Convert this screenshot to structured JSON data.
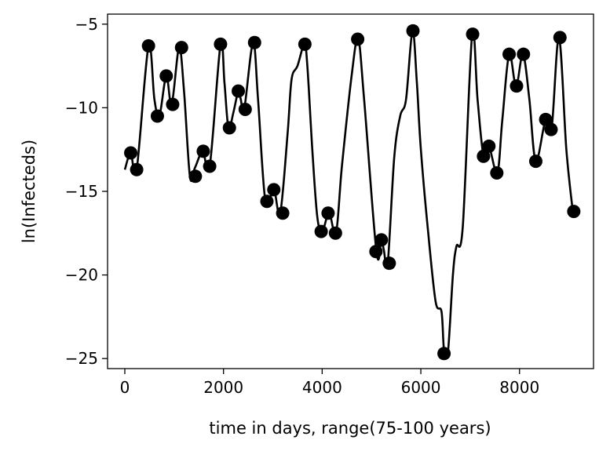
{
  "chart_data": {
    "type": "line",
    "title": "",
    "xlabel": "time in days, range(75-100 years)",
    "ylabel": "ln(Infecteds)",
    "xlim": [
      -350,
      9500
    ],
    "ylim": [
      -25.6,
      -4.4
    ],
    "xticks": [
      0,
      2000,
      4000,
      6000,
      8000
    ],
    "yticks": [
      -25,
      -20,
      -15,
      -10,
      -5
    ],
    "xtick_labels": [
      "0",
      "2000",
      "4000",
      "6000",
      "8000"
    ],
    "ytick_labels": [
      "−25",
      "−20",
      "−15",
      "−10",
      "−5"
    ],
    "grid": false,
    "legend": "none",
    "line_color": "#000000",
    "marker_color": "#000000",
    "curve": {
      "x": [
        0,
        120,
        240,
        480,
        600,
        700,
        840,
        950,
        1100,
        1200,
        1320,
        1420,
        1580,
        1720,
        1940,
        2020,
        2100,
        2200,
        2300,
        2350,
        2420,
        2600,
        2700,
        2850,
        3020,
        3150,
        3300,
        3380,
        3500,
        3640,
        3700,
        3800,
        3900,
        4000,
        4140,
        4280,
        4400,
        4600,
        4730,
        4850,
        5100,
        5200,
        5250,
        5330,
        5460,
        5580,
        5700,
        5830,
        5920,
        6000,
        6150,
        6300,
        6420,
        6470,
        6550,
        6650,
        6720,
        6850,
        7040,
        7150,
        7270,
        7380,
        7550,
        7650,
        7790,
        7930,
        8070,
        8200,
        8330,
        8530,
        8650,
        8800,
        8950,
        9080
      ],
      "y": [
        -13.7,
        -12.7,
        -13.7,
        -6.3,
        -9.5,
        -10.5,
        -8.1,
        -9.8,
        -6.4,
        -9.0,
        -14.1,
        -13.6,
        -12.6,
        -13.5,
        -6.2,
        -8.5,
        -11.2,
        -10.3,
        -9.0,
        -9.5,
        -10.1,
        -6.1,
        -9.5,
        -15.6,
        -14.9,
        -16.3,
        -11.5,
        -8.3,
        -7.5,
        -6.2,
        -7.5,
        -12.5,
        -16.5,
        -17.4,
        -16.3,
        -17.5,
        -13.5,
        -8.0,
        -5.9,
        -9.5,
        -18.6,
        -17.9,
        -18.5,
        -19.3,
        -13.0,
        -10.5,
        -9.5,
        -5.4,
        -8.5,
        -12.5,
        -17.5,
        -21.6,
        -22.2,
        -24.5,
        -24.6,
        -20.0,
        -18.3,
        -17.1,
        -5.6,
        -9.5,
        -12.9,
        -12.3,
        -13.9,
        -10.8,
        -6.8,
        -8.7,
        -6.8,
        -9.5,
        -13.2,
        -10.7,
        -11.3,
        -5.8,
        -12.5,
        -16.2
      ]
    },
    "markers": {
      "x": [
        120,
        240,
        480,
        660,
        840,
        970,
        1150,
        1430,
        1590,
        1720,
        1940,
        2120,
        2300,
        2440,
        2630,
        2880,
        3020,
        3200,
        3650,
        3980,
        4120,
        4270,
        4720,
        5090,
        5200,
        5360,
        5840,
        6470,
        7050,
        7270,
        7380,
        7540,
        7790,
        7940,
        8080,
        8330,
        8530,
        8640,
        8820,
        9100
      ],
      "y": [
        -12.7,
        -13.7,
        -6.3,
        -10.5,
        -8.1,
        -9.8,
        -6.4,
        -14.1,
        -12.6,
        -13.5,
        -6.2,
        -11.2,
        -9.0,
        -10.1,
        -6.1,
        -15.6,
        -14.9,
        -16.3,
        -6.2,
        -17.4,
        -16.3,
        -17.5,
        -5.9,
        -18.6,
        -17.9,
        -19.3,
        -5.4,
        -24.7,
        -5.6,
        -12.9,
        -12.3,
        -13.9,
        -6.8,
        -8.7,
        -6.8,
        -13.2,
        -10.7,
        -11.3,
        -5.8,
        -16.2
      ]
    }
  }
}
